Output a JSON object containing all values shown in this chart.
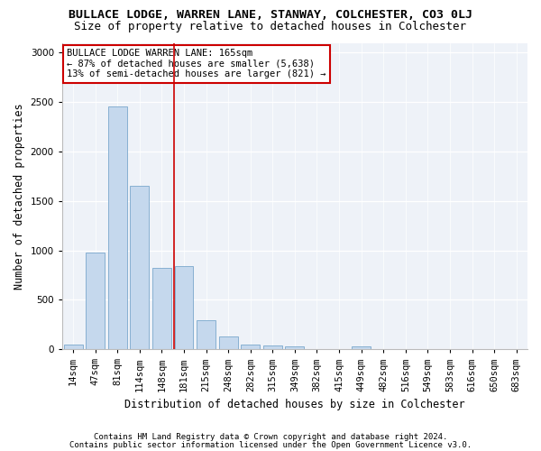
{
  "title": "BULLACE LODGE, WARREN LANE, STANWAY, COLCHESTER, CO3 0LJ",
  "subtitle": "Size of property relative to detached houses in Colchester",
  "xlabel": "Distribution of detached houses by size in Colchester",
  "ylabel": "Number of detached properties",
  "categories": [
    "14sqm",
    "47sqm",
    "81sqm",
    "114sqm",
    "148sqm",
    "181sqm",
    "215sqm",
    "248sqm",
    "282sqm",
    "315sqm",
    "349sqm",
    "382sqm",
    "415sqm",
    "449sqm",
    "482sqm",
    "516sqm",
    "549sqm",
    "583sqm",
    "616sqm",
    "650sqm",
    "683sqm"
  ],
  "values": [
    50,
    980,
    2460,
    1650,
    820,
    840,
    290,
    130,
    50,
    40,
    25,
    5,
    5,
    30,
    5,
    5,
    0,
    0,
    0,
    0,
    0
  ],
  "bar_color": "#c5d8ed",
  "bar_edge_color": "#7aa8cc",
  "vline_x": 4.55,
  "vline_color": "#cc0000",
  "annotation_text": "BULLACE LODGE WARREN LANE: 165sqm\n← 87% of detached houses are smaller (5,638)\n13% of semi-detached houses are larger (821) →",
  "annotation_box_color": "#ffffff",
  "annotation_box_edge": "#cc0000",
  "ylim": [
    0,
    3100
  ],
  "yticks": [
    0,
    500,
    1000,
    1500,
    2000,
    2500,
    3000
  ],
  "footer1": "Contains HM Land Registry data © Crown copyright and database right 2024.",
  "footer2": "Contains public sector information licensed under the Open Government Licence v3.0.",
  "bg_color": "#ffffff",
  "plot_bg_color": "#eef2f8",
  "title_fontsize": 9.5,
  "subtitle_fontsize": 9,
  "tick_fontsize": 7.5,
  "ylabel_fontsize": 8.5,
  "xlabel_fontsize": 8.5,
  "annotation_fontsize": 7.5,
  "footer_fontsize": 6.5
}
